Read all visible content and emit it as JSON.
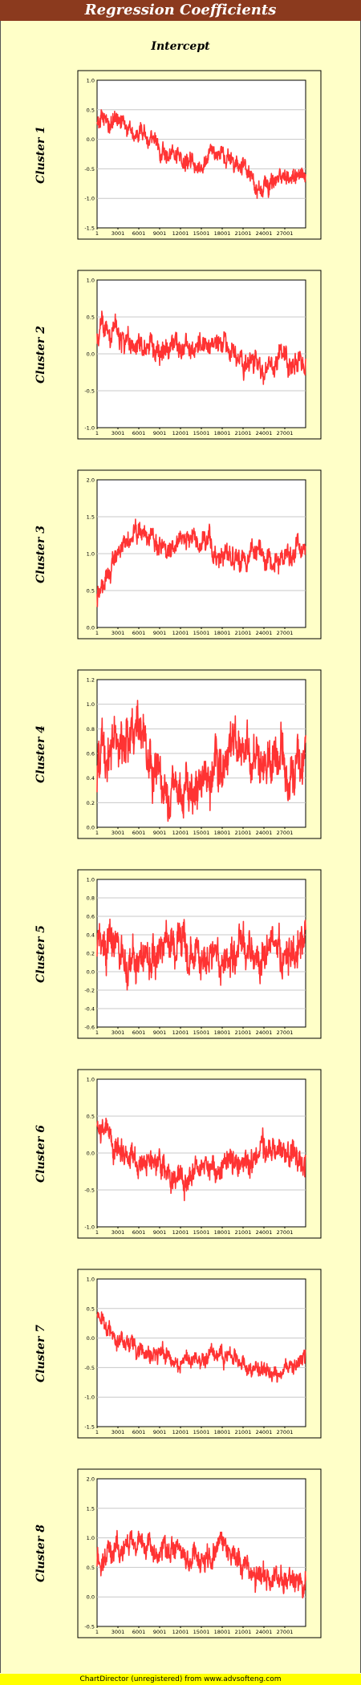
{
  "header": {
    "title": "Regression Coefficients"
  },
  "subtitle": "Intercept",
  "footer": "ChartDirector (unregistered) from www.advsofteng.com",
  "colors": {
    "line": "#ff3333",
    "plot_bg": "#ffffff",
    "panel_bg": "#ffffc8",
    "header_bg": "#8b3a1e"
  },
  "chart_data": [
    {
      "type": "line",
      "title": "Cluster 1",
      "ylim": [
        -1.5,
        1.0
      ],
      "yticks": [
        "1.0",
        "0.5",
        "0.0",
        "-0.5",
        "-1.0",
        "-1.5"
      ],
      "xticks": [
        "1",
        "3001",
        "6001",
        "9001",
        "12001",
        "15001",
        "18001",
        "21001",
        "24001",
        "27001"
      ],
      "xlim": [
        1,
        30000
      ],
      "x": [
        1,
        3001,
        6001,
        9001,
        12001,
        15001,
        18001,
        21001,
        24001,
        27001,
        30000
      ],
      "values": [
        0.35,
        0.3,
        0.1,
        -0.15,
        -0.3,
        -0.4,
        -0.2,
        -0.55,
        -0.9,
        -0.6,
        -0.8
      ],
      "noise": 0.22,
      "grid": true
    },
    {
      "type": "line",
      "title": "Cluster 2",
      "ylim": [
        -1.0,
        1.0
      ],
      "yticks": [
        "1.0",
        "0.5",
        "0.0",
        "-0.5",
        "-1.0"
      ],
      "xticks": [
        "1",
        "3001",
        "6001",
        "9001",
        "12001",
        "15001",
        "18001",
        "21001",
        "24001",
        "27001"
      ],
      "xlim": [
        1,
        30000
      ],
      "x": [
        1,
        3001,
        6001,
        9001,
        12001,
        15001,
        18001,
        21001,
        24001,
        27001,
        30000
      ],
      "values": [
        0.3,
        0.3,
        0.15,
        0.05,
        0.1,
        0.05,
        0.0,
        -0.1,
        -0.2,
        -0.1,
        -0.25
      ],
      "noise": 0.22,
      "grid": true
    },
    {
      "type": "line",
      "title": "Cluster 3",
      "ylim": [
        0.0,
        2.0
      ],
      "yticks": [
        "2.0",
        "1.5",
        "1.0",
        "0.5",
        "0.0"
      ],
      "xticks": [
        "1",
        "3001",
        "6001",
        "9001",
        "12001",
        "15001",
        "18001",
        "21001",
        "24001",
        "27001"
      ],
      "xlim": [
        1,
        30000
      ],
      "x": [
        1,
        3001,
        6001,
        9001,
        12001,
        15001,
        18001,
        21001,
        24001,
        27001,
        30000
      ],
      "values": [
        0.45,
        1.0,
        1.3,
        1.05,
        1.15,
        1.25,
        1.0,
        0.9,
        0.95,
        0.9,
        1.1
      ],
      "noise": 0.2,
      "grid": true
    },
    {
      "type": "line",
      "title": "Cluster 4",
      "ylim": [
        0.0,
        1.2
      ],
      "yticks": [
        "1.2",
        "1.0",
        "0.8",
        "0.6",
        "0.4",
        "0.2",
        "0.0"
      ],
      "xticks": [
        "1",
        "3001",
        "6001",
        "9001",
        "12001",
        "15001",
        "18001",
        "21001",
        "24001",
        "27001"
      ],
      "xlim": [
        1,
        30000
      ],
      "x": [
        1,
        3001,
        6001,
        9001,
        12001,
        15001,
        18001,
        21001,
        24001,
        27001,
        30000
      ],
      "values": [
        0.45,
        0.55,
        0.7,
        0.45,
        0.4,
        0.45,
        0.45,
        0.5,
        0.55,
        0.5,
        0.55
      ],
      "noise": 0.28,
      "grid": true
    },
    {
      "type": "line",
      "title": "Cluster 5",
      "ylim": [
        -0.6,
        1.0
      ],
      "yticks": [
        "1.0",
        "0.8",
        "0.6",
        "0.4",
        "0.2",
        "0.0",
        "-0.2",
        "-0.4",
        "-0.6"
      ],
      "xticks": [
        "1",
        "3001",
        "6001",
        "9001",
        "12001",
        "15001",
        "18001",
        "21001",
        "24001",
        "27001"
      ],
      "xlim": [
        1,
        30000
      ],
      "x": [
        1,
        3001,
        6001,
        9001,
        12001,
        15001,
        18001,
        21001,
        24001,
        27001,
        30000
      ],
      "values": [
        0.3,
        0.25,
        -0.1,
        0.15,
        0.3,
        0.2,
        0.15,
        0.25,
        0.2,
        0.15,
        0.3
      ],
      "noise": 0.3,
      "grid": true
    },
    {
      "type": "line",
      "title": "Cluster 6",
      "ylim": [
        -1.0,
        1.0
      ],
      "yticks": [
        "1.0",
        "0.5",
        "0.0",
        "-0.5",
        "-1.0"
      ],
      "xticks": [
        "1",
        "3001",
        "6001",
        "9001",
        "12001",
        "15001",
        "18001",
        "21001",
        "24001",
        "27001"
      ],
      "xlim": [
        1,
        30000
      ],
      "x": [
        1,
        3001,
        6001,
        9001,
        12001,
        15001,
        18001,
        21001,
        24001,
        27001,
        30000
      ],
      "values": [
        0.4,
        0.0,
        -0.2,
        -0.1,
        -0.2,
        -0.3,
        -0.15,
        -0.1,
        0.1,
        0.0,
        -0.2
      ],
      "noise": 0.25,
      "grid": true
    },
    {
      "type": "line",
      "title": "Cluster 7",
      "ylim": [
        -1.5,
        1.0
      ],
      "yticks": [
        "1.0",
        "0.5",
        "0.0",
        "-0.5",
        "-1.0",
        "-1.5"
      ],
      "xticks": [
        "1",
        "3001",
        "6001",
        "9001",
        "12001",
        "15001",
        "18001",
        "21001",
        "24001",
        "27001"
      ],
      "xlim": [
        1,
        30000
      ],
      "x": [
        1,
        3001,
        6001,
        9001,
        12001,
        15001,
        18001,
        21001,
        24001,
        27001,
        30000
      ],
      "values": [
        0.4,
        0.0,
        -0.2,
        -0.3,
        -0.4,
        -0.35,
        -0.3,
        -0.4,
        -0.5,
        -0.55,
        -0.35
      ],
      "noise": 0.2,
      "grid": true
    },
    {
      "type": "line",
      "title": "Cluster 8",
      "ylim": [
        -0.5,
        2.0
      ],
      "yticks": [
        "2.0",
        "1.5",
        "1.0",
        "0.5",
        "0.0",
        "-0.5"
      ],
      "xticks": [
        "1",
        "3001",
        "6001",
        "9001",
        "12001",
        "15001",
        "18001",
        "21001",
        "24001",
        "27001"
      ],
      "xlim": [
        1,
        30000
      ],
      "x": [
        1,
        3001,
        6001,
        9001,
        12001,
        15001,
        18001,
        21001,
        24001,
        27001,
        30000
      ],
      "values": [
        0.7,
        0.8,
        0.75,
        0.8,
        0.7,
        0.65,
        0.9,
        0.5,
        0.4,
        0.3,
        0.2
      ],
      "noise": 0.28,
      "grid": true
    }
  ]
}
